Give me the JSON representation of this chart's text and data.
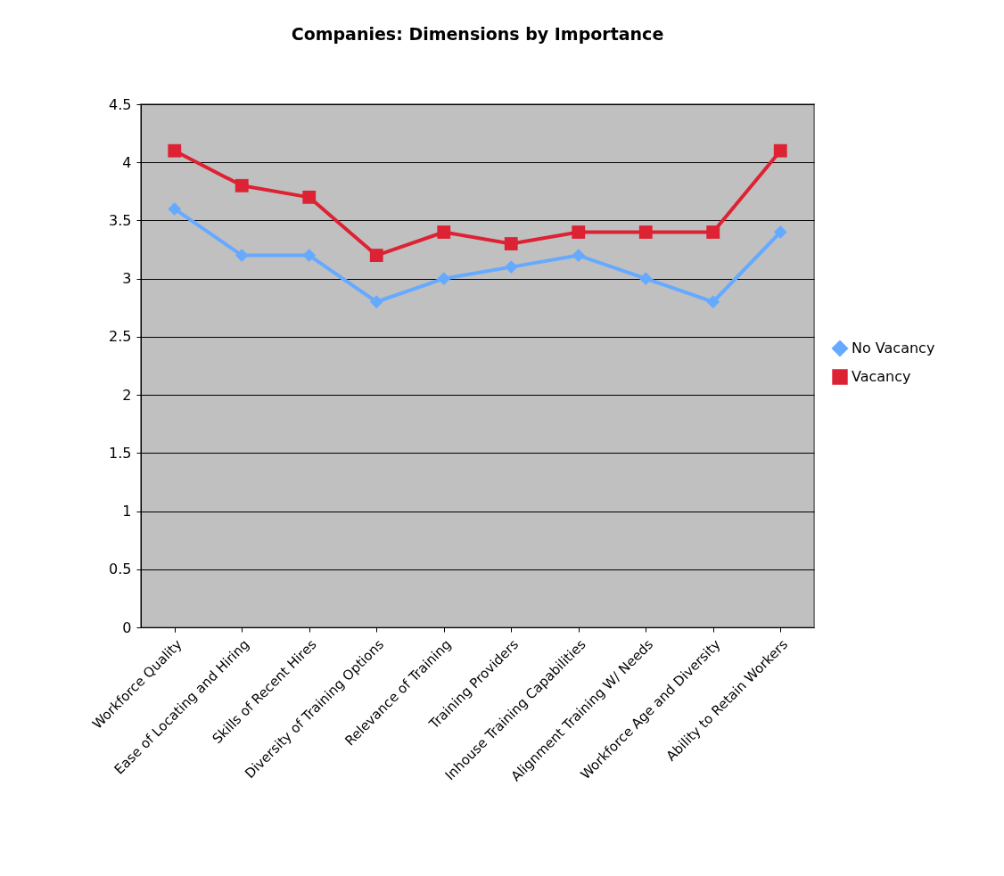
{
  "chart_data": {
    "type": "line",
    "title": "Companies: Dimensions by Importance",
    "categories": [
      "Workforce Quality",
      "Ease of Locating and Hiring",
      "Skills of Recent Hires",
      "Diversity of Training Options",
      "Relevance of Training",
      "Training Providers",
      "Inhouse Training Capabilities",
      "Alignment Training W/ Needs",
      "Workforce Age and Diversity",
      "Ability to Retain Workers"
    ],
    "series": [
      {
        "name": "No Vacancy",
        "color": "#66aaff",
        "marker": "diamond",
        "values": [
          3.6,
          3.2,
          3.2,
          2.8,
          3.0,
          3.1,
          3.2,
          3.0,
          2.8,
          3.4
        ]
      },
      {
        "name": "Vacancy",
        "color": "#dd2233",
        "marker": "square",
        "values": [
          4.1,
          3.8,
          3.7,
          3.2,
          3.4,
          3.3,
          3.4,
          3.4,
          3.4,
          4.1
        ]
      }
    ],
    "ylim": [
      0,
      4.5
    ],
    "yticks": [
      0,
      0.5,
      1,
      1.5,
      2,
      2.5,
      3,
      3.5,
      4,
      4.5
    ],
    "grid": "y",
    "legend": "right",
    "line_style": "solid"
  }
}
